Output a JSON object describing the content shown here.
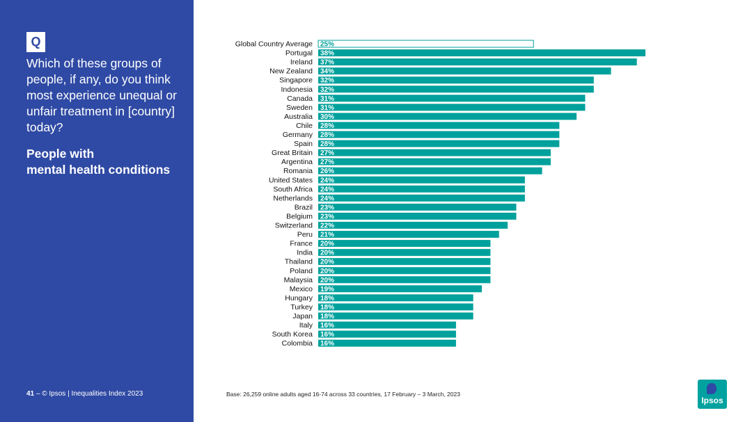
{
  "sidebar": {
    "q_label": "Q",
    "question": "Which of these groups of people, if any, do you think most experience unequal or unfair treatment in [country] today?",
    "subject_line1": "People with",
    "subject_line2": "mental health conditions",
    "page_number": "41",
    "footer_text": "– © Ipsos | Inequalities Index 2023"
  },
  "base_note": "Base: 26,259 online adults aged 16-74 across 33 countries, 17 February – 3 March, 2023",
  "logo_text": "Ipsos",
  "colors": {
    "sidebar": "#2F4AA4",
    "bar": "#00A19C",
    "average_outline": "#00A19C"
  },
  "chart_data": {
    "type": "bar",
    "orientation": "horizontal",
    "value_suffix": "%",
    "categories": [
      "Global Country Average",
      "Portugal",
      "Ireland",
      "New Zealand",
      "Singapore",
      "Indonesia",
      "Canada",
      "Sweden",
      "Australia",
      "Chile",
      "Germany",
      "Spain",
      "Great Britain",
      "Argentina",
      "Romania",
      "United States",
      "South Africa",
      "Netherlands",
      "Brazil",
      "Belgium",
      "Switzerland",
      "Peru",
      "France",
      "India",
      "Thailand",
      "Poland",
      "Malaysia",
      "Mexico",
      "Hungary",
      "Turkey",
      "Japan",
      "Italy",
      "South Korea",
      "Colombia"
    ],
    "values": [
      25,
      38,
      37,
      34,
      32,
      32,
      31,
      31,
      30,
      28,
      28,
      28,
      27,
      27,
      26,
      24,
      24,
      24,
      23,
      23,
      22,
      21,
      20,
      20,
      20,
      20,
      20,
      19,
      18,
      18,
      18,
      16,
      16,
      16
    ],
    "highlight": "Global Country Average",
    "xlim": [
      0,
      38
    ]
  }
}
